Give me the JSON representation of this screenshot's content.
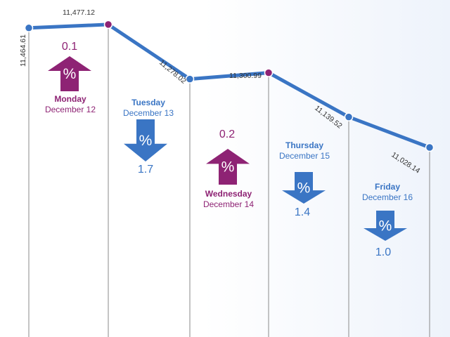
{
  "chart_data": {
    "type": "line",
    "categories": [
      "Monday",
      "Tuesday",
      "Wednesday",
      "Thursday",
      "Friday"
    ],
    "x_labels": [
      {
        "day": "Monday",
        "date": "December 12"
      },
      {
        "day": "Tuesday",
        "date": "December 13"
      },
      {
        "day": "Wednesday",
        "date": "December 14"
      },
      {
        "day": "Thursday",
        "date": "December 15"
      },
      {
        "day": "Friday",
        "date": "December 16"
      }
    ],
    "points": [
      {
        "value": 11464.61,
        "label": "11,464.61"
      },
      {
        "value": 11477.12,
        "label": "11,477.12"
      },
      {
        "value": 11278.02,
        "label": "11,278.02"
      },
      {
        "value": 11300.99,
        "label": "11,300.99"
      },
      {
        "value": 11139.52,
        "label": "11,139.52"
      },
      {
        "value": 11028.14,
        "label": "11,028.14"
      }
    ],
    "daily_change": [
      {
        "day": "Monday",
        "direction": "up",
        "value": "0.1",
        "symbol": "%"
      },
      {
        "day": "Tuesday",
        "direction": "down",
        "value": "1.7",
        "symbol": "%"
      },
      {
        "day": "Wednesday",
        "direction": "up",
        "value": "0.2",
        "symbol": "%"
      },
      {
        "day": "Thursday",
        "direction": "down",
        "value": "1.4",
        "symbol": "%"
      },
      {
        "day": "Friday",
        "direction": "down",
        "value": "1.0",
        "symbol": "%"
      }
    ],
    "ylim": [
      10900,
      11500
    ],
    "grid": false,
    "colors": {
      "line": "#3a75c4",
      "up": "#8e2374",
      "down": "#3a75c4",
      "axis": "#8a8a8a"
    }
  }
}
